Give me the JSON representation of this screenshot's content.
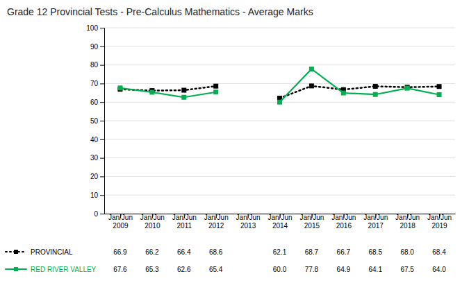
{
  "chart_data": {
    "type": "line",
    "title": "Grade 12 Provincial Tests - Pre-Calculus Mathematics - Average Marks",
    "categories": [
      "Jan/Jun\n2009",
      "Jan/Jun\n2010",
      "Jan/Jun\n2011",
      "Jan/Jun\n2012",
      "Jan/Jun\n2013",
      "Jan/Jun\n2014",
      "Jan/Jun\n2015",
      "Jan/Jun\n2016",
      "Jan/Jun\n2017",
      "Jan/Jun\n2018",
      "Jan/Jun\n2019"
    ],
    "series": [
      {
        "name": "PROVINCIAL",
        "color": "#000000",
        "line_style": "dotted",
        "marker": "square",
        "values": [
          66.9,
          66.2,
          66.4,
          68.6,
          null,
          62.1,
          68.7,
          66.7,
          68.5,
          68.0,
          68.4
        ],
        "value_labels": [
          "66.9",
          "66.2",
          "66.4",
          "68.6",
          null,
          "62.1",
          "68.7",
          "66.7",
          "68.5",
          "68.0",
          "68.4"
        ]
      },
      {
        "name": "RED RIVER VALLEY",
        "color": "#00b050",
        "line_style": "solid",
        "marker": "square",
        "values": [
          67.6,
          65.3,
          62.6,
          65.4,
          null,
          60.0,
          77.8,
          64.9,
          64.1,
          67.5,
          64.0
        ],
        "value_labels": [
          "67.6",
          "65.3",
          "62.6",
          "65.4",
          null,
          "60.0",
          "77.8",
          "64.9",
          "64.1",
          "67.5",
          "64.0"
        ]
      }
    ],
    "ylim": [
      0,
      100
    ],
    "yticks": [
      0,
      10,
      20,
      30,
      40,
      50,
      60,
      70,
      80,
      90,
      100
    ],
    "grid": true,
    "legend": "bottom",
    "data_labels": true
  }
}
